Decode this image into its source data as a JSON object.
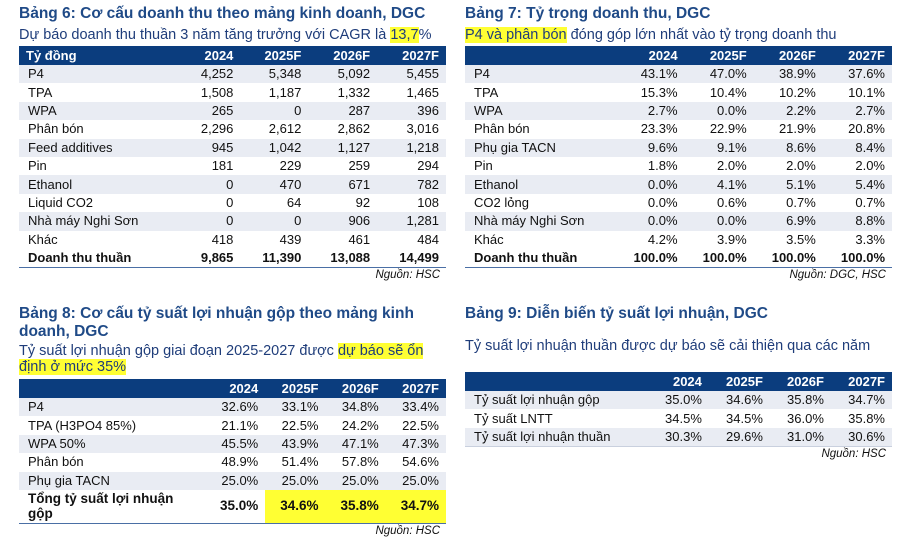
{
  "colors": {
    "header": "#0b3d7e",
    "title": "#1f4a87",
    "highlight": "#ffff33"
  },
  "t6": {
    "title": "Bảng 6: Cơ cấu doanh thu theo mảng kinh doanh, DGC",
    "subtitle_pre": "Dự báo doanh thu thuần 3 năm tăng trưởng với CAGR là ",
    "subtitle_hl": "13,7",
    "subtitle_post": "%",
    "columns": [
      "Tỷ đồng",
      "2024",
      "2025F",
      "2026F",
      "2027F"
    ],
    "rows": [
      [
        "P4",
        "4,252",
        "5,348",
        "5,092",
        "5,455"
      ],
      [
        "TPA",
        "1,508",
        "1,187",
        "1,332",
        "1,465"
      ],
      [
        "WPA",
        "265",
        "0",
        "287",
        "396"
      ],
      [
        "Phân bón",
        "2,296",
        "2,612",
        "2,862",
        "3,016"
      ],
      [
        "Feed additives",
        "945",
        "1,042",
        "1,127",
        "1,218"
      ],
      [
        "Pin",
        "181",
        "229",
        "259",
        "294"
      ],
      [
        "Ethanol",
        "0",
        "470",
        "671",
        "782"
      ],
      [
        "Liquid CO2",
        "0",
        "64",
        "92",
        "108"
      ],
      [
        "Nhà máy Nghi Sơn",
        "0",
        "0",
        "906",
        "1,281"
      ],
      [
        "Khác",
        "418",
        "439",
        "461",
        "484"
      ]
    ],
    "total": [
      "Doanh thu thuần",
      "9,865",
      "11,390",
      "13,088",
      "14,499"
    ],
    "source": "Nguồn: HSC"
  },
  "t7": {
    "title": "Bảng 7: Tỷ trọng doanh thu, DGC",
    "subtitle_hl": "P4 và phân bón",
    "subtitle_post": " đóng góp lớn nhất vào tỷ trọng doanh thu",
    "columns": [
      "",
      "2024",
      "2025F",
      "2026F",
      "2027F"
    ],
    "rows": [
      [
        "P4",
        "43.1%",
        "47.0%",
        "38.9%",
        "37.6%"
      ],
      [
        "TPA",
        "15.3%",
        "10.4%",
        "10.2%",
        "10.1%"
      ],
      [
        "WPA",
        "2.7%",
        "0.0%",
        "2.2%",
        "2.7%"
      ],
      [
        "Phân bón",
        "23.3%",
        "22.9%",
        "21.9%",
        "20.8%"
      ],
      [
        "Phụ gia TACN",
        "9.6%",
        "9.1%",
        "8.6%",
        "8.4%"
      ],
      [
        "Pin",
        "1.8%",
        "2.0%",
        "2.0%",
        "2.0%"
      ],
      [
        "Ethanol",
        "0.0%",
        "4.1%",
        "5.1%",
        "5.4%"
      ],
      [
        "CO2 lỏng",
        "0.0%",
        "0.6%",
        "0.7%",
        "0.7%"
      ],
      [
        "Nhà máy Nghi Sơn",
        "0.0%",
        "0.0%",
        "6.9%",
        "8.8%"
      ],
      [
        "Khác",
        "4.2%",
        "3.9%",
        "3.5%",
        "3.3%"
      ]
    ],
    "total": [
      "Doanh thu thuần",
      "100.0%",
      "100.0%",
      "100.0%",
      "100.0%"
    ],
    "source": "Nguồn: DGC, HSC"
  },
  "t8": {
    "title": "Bảng 8: Cơ cấu tỷ suất lợi nhuận gộp theo mảng kinh doanh, DGC",
    "subtitle_pre": "Tỷ suất lợi nhuận gộp giai đoạn 2025-2027 được ",
    "subtitle_hl": "dự báo sẽ ổn định ở mức 35%",
    "columns": [
      "",
      "2024",
      "2025F",
      "2026F",
      "2027F"
    ],
    "rows": [
      [
        "P4",
        "32.6%",
        "33.1%",
        "34.8%",
        "33.4%"
      ],
      [
        "TPA (H3PO4 85%)",
        "21.1%",
        "22.5%",
        "24.2%",
        "22.5%"
      ],
      [
        "WPA 50%",
        "45.5%",
        "43.9%",
        "47.1%",
        "47.3%"
      ],
      [
        "Phân bón",
        "48.9%",
        "51.4%",
        "57.8%",
        "54.6%"
      ],
      [
        "Phụ gia TACN",
        "25.0%",
        "25.0%",
        "25.0%",
        "25.0%"
      ]
    ],
    "total": [
      "Tổng tỷ suất lợi nhuận gộp",
      "35.0%",
      "34.6%",
      "35.8%",
      "34.7%"
    ],
    "source": "Nguồn: HSC"
  },
  "t9": {
    "title": "Bảng 9: Diễn biến tỷ suất lợi nhuận, DGC",
    "subtitle": "Tỷ suất lợi nhuận thuần được dự báo sẽ cải thiện qua các năm",
    "columns": [
      "",
      "2024",
      "2025F",
      "2026F",
      "2027F"
    ],
    "rows": [
      [
        "Tỷ suất lợi nhuận gộp",
        "35.0%",
        "34.6%",
        "35.8%",
        "34.7%"
      ],
      [
        "Tỷ suất LNTT",
        "34.5%",
        "34.5%",
        "36.0%",
        "35.8%"
      ],
      [
        "Tỷ suất lợi nhuận thuần",
        "30.3%",
        "29.6%",
        "31.0%",
        "30.6%"
      ]
    ],
    "source": "Nguồn: HSC"
  }
}
